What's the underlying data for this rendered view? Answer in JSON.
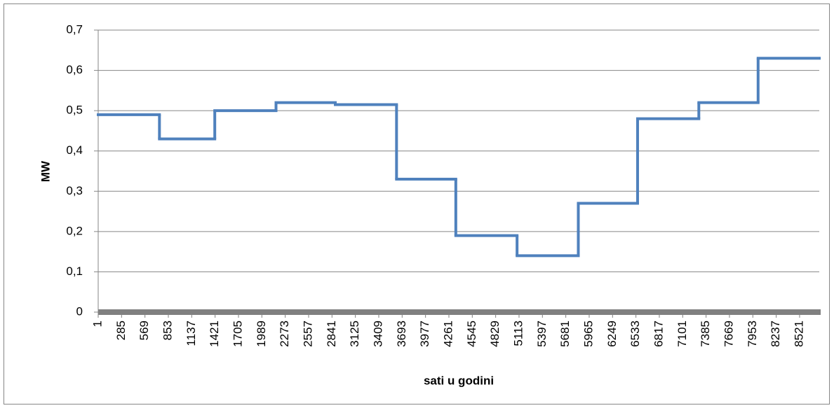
{
  "chart_data": {
    "type": "step",
    "y_label": "MW",
    "x_label": "sati u godini",
    "x": [
      1,
      745,
      1417,
      2161,
      2881,
      3625,
      4345,
      5089,
      5833,
      6553,
      7297,
      8017
    ],
    "values": [
      0.49,
      0.43,
      0.5,
      0.52,
      0.515,
      0.33,
      0.19,
      0.14,
      0.27,
      0.48,
      0.52,
      0.63
    ],
    "color": "#4f81bd",
    "xlim": [
      1,
      8760
    ],
    "xticks": [
      1,
      285,
      569,
      853,
      1137,
      1421,
      1705,
      1989,
      2273,
      2557,
      2841,
      3125,
      3409,
      3693,
      3977,
      4261,
      4545,
      4829,
      5113,
      5397,
      5681,
      5965,
      6249,
      6533,
      6817,
      7101,
      7385,
      7669,
      7953,
      8237,
      8521
    ],
    "ylim": [
      0,
      0.7
    ],
    "yticks": [
      0,
      {
        "value": 0.1,
        "label": "0,1"
      },
      {
        "value": 0.2,
        "label": "0,2"
      },
      {
        "value": 0.3,
        "label": "0,3"
      },
      {
        "value": 0.4,
        "label": "0,4"
      },
      {
        "value": 0.5,
        "label": "0,5"
      },
      {
        "value": 0.6,
        "label": "0,6"
      },
      {
        "value": 0.7,
        "label": "0,7"
      }
    ],
    "grid": true
  }
}
